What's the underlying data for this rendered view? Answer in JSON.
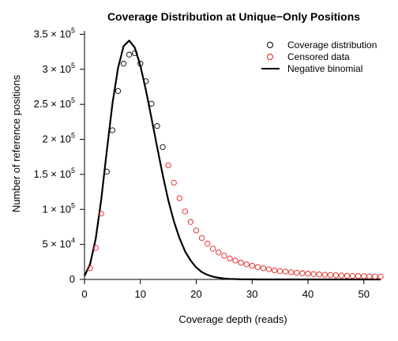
{
  "chart_data": {
    "type": "scatter",
    "title": "Coverage Distribution at Unique−Only Positions",
    "xlabel": "Coverage depth (reads)",
    "ylabel": "Number of reference positions",
    "xlim": [
      0,
      53
    ],
    "ylim": [
      0,
      355000
    ],
    "x_ticks": [
      0,
      10,
      20,
      30,
      40,
      50
    ],
    "y_ticks": [
      {
        "value": 0,
        "label": "0",
        "base": "",
        "exp": ""
      },
      {
        "value": 50000,
        "label": "",
        "base": "5 × 10",
        "exp": "4"
      },
      {
        "value": 100000,
        "label": "",
        "base": "1 × 10",
        "exp": "5"
      },
      {
        "value": 150000,
        "label": "",
        "base": "1.5 × 10",
        "exp": "5"
      },
      {
        "value": 200000,
        "label": "",
        "base": "2 × 10",
        "exp": "5"
      },
      {
        "value": 250000,
        "label": "",
        "base": "2.5 × 10",
        "exp": "5"
      },
      {
        "value": 300000,
        "label": "",
        "base": "3 × 10",
        "exp": "5"
      },
      {
        "value": 350000,
        "label": "",
        "base": "3.5 × 10",
        "exp": "5"
      }
    ],
    "legend_position": "top-right",
    "colors": {
      "coverage": "#000000",
      "censored": "#e0201b",
      "nb": "#000000"
    },
    "series": [
      {
        "name": "Coverage distribution",
        "kind": "points",
        "color": "#000000",
        "x": [
          4,
          5,
          6,
          7,
          8,
          9,
          10,
          11,
          12,
          13,
          14
        ],
        "y": [
          154000,
          213000,
          269000,
          308000,
          321000,
          323000,
          308000,
          283000,
          251000,
          219000,
          189000
        ]
      },
      {
        "name": "Censored data",
        "kind": "points",
        "color": "#e0201b",
        "x": [
          1,
          2,
          3,
          15,
          16,
          17,
          18,
          19,
          20,
          21,
          22,
          23,
          24,
          25,
          26,
          27,
          28,
          29,
          30,
          31,
          32,
          33,
          34,
          35,
          36,
          37,
          38,
          39,
          40,
          41,
          42,
          43,
          44,
          45,
          46,
          47,
          48,
          49,
          50,
          51,
          52,
          53
        ],
        "y": [
          16000,
          45000,
          94000,
          163000,
          138000,
          116000,
          97000,
          82000,
          70000,
          59000,
          51000,
          44000,
          38500,
          34000,
          30000,
          27000,
          24000,
          21500,
          19500,
          17500,
          16000,
          14500,
          13000,
          12000,
          11000,
          10200,
          9500,
          8800,
          8200,
          7600,
          7100,
          6700,
          6300,
          5900,
          5600,
          5300,
          5000,
          4800,
          4600,
          4400,
          4200,
          4000
        ]
      },
      {
        "name": "Negative binomial",
        "kind": "line",
        "color": "#000000",
        "x": [
          0,
          1,
          2,
          3,
          4,
          5,
          6,
          7,
          8,
          9,
          10,
          11,
          12,
          13,
          14,
          15,
          16,
          17,
          18,
          19,
          20,
          21,
          22,
          23,
          24,
          25,
          26,
          27,
          28,
          29,
          30,
          31,
          32,
          33,
          34,
          35,
          36,
          37,
          38,
          39,
          40,
          41,
          42,
          43,
          44,
          45,
          46,
          47,
          48,
          49,
          50,
          51,
          52,
          53
        ],
        "y": [
          5000,
          22000,
          58000,
          114000,
          184000,
          251000,
          302000,
          333000,
          341000,
          331000,
          305000,
          270000,
          230000,
          189000,
          149000,
          113000,
          83000,
          59000,
          40000,
          27000,
          17000,
          10500,
          6500,
          4000,
          2400,
          1400,
          800,
          450,
          250,
          140,
          80,
          40,
          20,
          10,
          5,
          2,
          1,
          0,
          0,
          0,
          0,
          0,
          0,
          0,
          0,
          0,
          0,
          0,
          0,
          0,
          0,
          0,
          0,
          0
        ]
      }
    ]
  }
}
